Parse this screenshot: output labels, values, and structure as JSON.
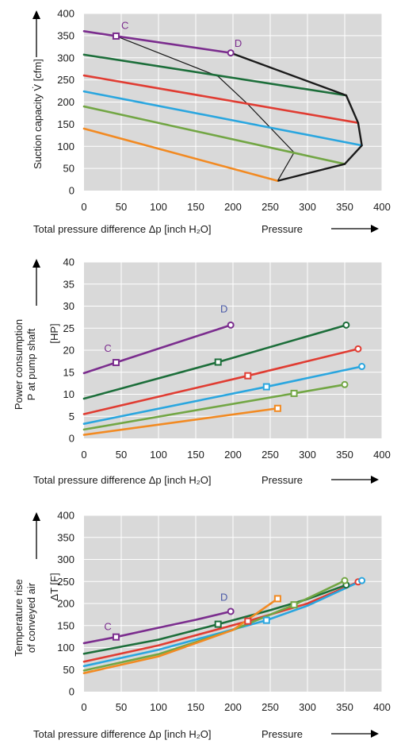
{
  "colors": {
    "plot_bg": "#d9d9d9",
    "grid": "#ffffff",
    "purple": "#7b2d8e",
    "darkgreen": "#1c6e3a",
    "red": "#e03c32",
    "blue": "#2aa6df",
    "green": "#72a644",
    "orange": "#f28a22",
    "black": "#1a1a1a",
    "label_purple": "#7b2d8e",
    "label_blue": "#4a5aa8"
  },
  "chart_data": [
    {
      "type": "line",
      "ylabel": "Suction capacity V̇ [cfm]",
      "xlabel": "Total pressure difference Δp [inch H₂O]",
      "xlabel_extra": "Pressure",
      "xlim": [
        0,
        400
      ],
      "ylim": [
        0,
        400
      ],
      "xticks": [
        0,
        50,
        100,
        150,
        200,
        250,
        300,
        350,
        400
      ],
      "yticks": [
        0,
        50,
        100,
        150,
        200,
        250,
        300,
        350,
        400
      ],
      "grid": true,
      "annotations": [
        {
          "text": "C",
          "x": 55,
          "y": 365
        },
        {
          "text": "D",
          "x": 207,
          "y": 325
        }
      ],
      "series": [
        {
          "color": "purple",
          "x": [
            0,
            43,
            197
          ],
          "y": [
            360,
            349,
            311
          ],
          "markers": [
            1,
            2
          ],
          "marker_style": [
            "square",
            "circle"
          ]
        },
        {
          "color": "darkgreen",
          "x": [
            0,
            352
          ],
          "y": [
            307,
            215
          ],
          "markers": []
        },
        {
          "color": "red",
          "x": [
            0,
            368
          ],
          "y": [
            260,
            153
          ],
          "markers": []
        },
        {
          "color": "blue",
          "x": [
            0,
            373
          ],
          "y": [
            224,
            102
          ],
          "markers": []
        },
        {
          "color": "green",
          "x": [
            0,
            350
          ],
          "y": [
            190,
            60
          ],
          "markers": []
        },
        {
          "color": "orange",
          "x": [
            0,
            260
          ],
          "y": [
            140,
            22
          ],
          "markers": []
        }
      ],
      "boundary": {
        "x": [
          197,
          352,
          368,
          373,
          350,
          260
        ],
        "y": [
          311,
          215,
          153,
          102,
          60,
          22
        ]
      },
      "inner_curve": {
        "x": [
          43,
          180,
          220,
          282,
          260
        ],
        "y": [
          349,
          258,
          195,
          86,
          22
        ]
      }
    },
    {
      "type": "line",
      "ylabel": "Power consumption",
      "ylabel2": "P at pump shaft",
      "yunit": "[HP]",
      "xlabel": "Total pressure difference Δp [inch H₂O]",
      "xlabel_extra": "Pressure",
      "xlim": [
        0,
        400
      ],
      "ylim": [
        0,
        40
      ],
      "xticks": [
        0,
        50,
        100,
        150,
        200,
        250,
        300,
        350,
        400
      ],
      "yticks": [
        0,
        5,
        10,
        15,
        20,
        25,
        30,
        35,
        40
      ],
      "grid": true,
      "annotations": [
        {
          "text": "C",
          "x": 32,
          "y": 19.6
        },
        {
          "text": "D",
          "x": 188,
          "y": 28.6
        }
      ],
      "series": [
        {
          "color": "purple",
          "x": [
            0,
            43,
            197
          ],
          "y": [
            14.8,
            17.2,
            25.7
          ],
          "markers": [
            1,
            2
          ],
          "marker_style": [
            "square",
            "circle"
          ]
        },
        {
          "color": "darkgreen",
          "x": [
            0,
            180,
            352
          ],
          "y": [
            9.0,
            17.3,
            25.7
          ],
          "markers": [
            1,
            2
          ],
          "marker_style": [
            "square",
            "circle"
          ]
        },
        {
          "color": "red",
          "x": [
            0,
            220,
            368
          ],
          "y": [
            5.5,
            14.2,
            20.3
          ],
          "markers": [
            1,
            2
          ],
          "marker_style": [
            "square",
            "circle"
          ]
        },
        {
          "color": "blue",
          "x": [
            0,
            245,
            373
          ],
          "y": [
            3.3,
            11.7,
            16.3
          ],
          "markers": [
            1,
            2
          ],
          "marker_style": [
            "square",
            "circle"
          ]
        },
        {
          "color": "green",
          "x": [
            0,
            282,
            350
          ],
          "y": [
            2.0,
            10.2,
            12.2
          ],
          "markers": [
            1,
            2
          ],
          "marker_style": [
            "square",
            "circle"
          ]
        },
        {
          "color": "orange",
          "x": [
            0,
            260
          ],
          "y": [
            0.8,
            6.8
          ],
          "markers": [
            1
          ],
          "marker_style": [
            "square"
          ]
        }
      ]
    },
    {
      "type": "line",
      "ylabel": "Temperature rise",
      "ylabel2": "of conveyed air",
      "yunit": "ΔT [F]",
      "xlabel": "Total pressure difference Δp [inch H₂O]",
      "xlabel_extra": "Pressure",
      "xlim": [
        0,
        400
      ],
      "ylim": [
        0,
        400
      ],
      "xticks": [
        0,
        50,
        100,
        150,
        200,
        250,
        300,
        350,
        400
      ],
      "yticks": [
        0,
        50,
        100,
        150,
        200,
        250,
        300,
        350,
        400
      ],
      "grid": true,
      "annotations": [
        {
          "text": "C",
          "x": 32,
          "y": 140
        },
        {
          "text": "D",
          "x": 188,
          "y": 206
        }
      ],
      "series": [
        {
          "color": "purple",
          "x": [
            0,
            43,
            100,
            150,
            197
          ],
          "y": [
            110,
            124,
            145,
            163,
            182
          ],
          "markers": [
            1,
            4
          ],
          "marker_style": [
            "square",
            "circle"
          ]
        },
        {
          "color": "darkgreen",
          "x": [
            0,
            100,
            180,
            250,
            300,
            352
          ],
          "y": [
            86,
            118,
            153,
            185,
            210,
            242
          ],
          "markers": [
            2,
            5
          ],
          "marker_style": [
            "square",
            "circle"
          ]
        },
        {
          "color": "red",
          "x": [
            0,
            100,
            220,
            300,
            368
          ],
          "y": [
            68,
            105,
            160,
            200,
            249
          ],
          "markers": [
            2,
            4
          ],
          "marker_style": [
            "square",
            "circle"
          ]
        },
        {
          "color": "blue",
          "x": [
            0,
            100,
            245,
            300,
            373
          ],
          "y": [
            58,
            95,
            162,
            195,
            252
          ],
          "markers": [
            2,
            4
          ],
          "marker_style": [
            "square",
            "circle"
          ]
        },
        {
          "color": "green",
          "x": [
            0,
            100,
            200,
            282,
            350
          ],
          "y": [
            48,
            85,
            140,
            197,
            252
          ],
          "markers": [
            3,
            4
          ],
          "marker_style": [
            "square",
            "circle"
          ]
        },
        {
          "color": "orange",
          "x": [
            0,
            100,
            200,
            260
          ],
          "y": [
            42,
            80,
            140,
            211
          ],
          "markers": [
            3
          ],
          "marker_style": [
            "square"
          ]
        }
      ]
    }
  ]
}
